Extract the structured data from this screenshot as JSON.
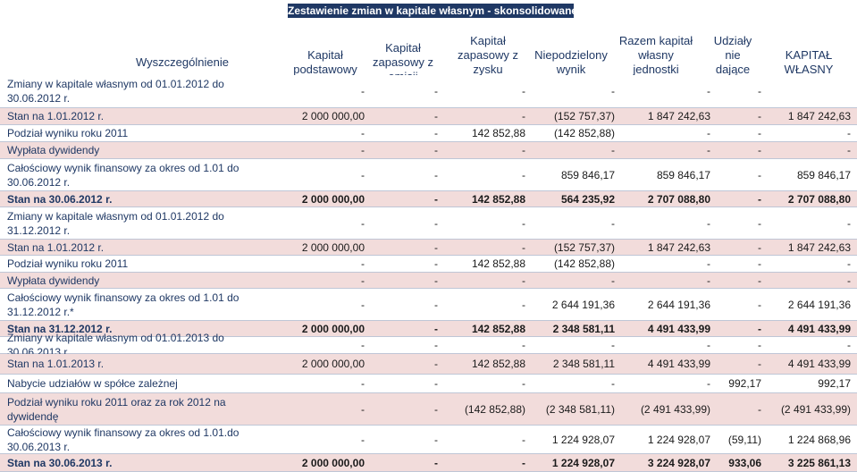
{
  "title": "Zestawienie zmian w kapitale własnym - skonsolidowane",
  "headers": [
    "Wyszczególnienie",
    "Kapitał\npodstawowy",
    "Kapitał\nzapasowy z\nemisji",
    "Kapitał\nzapasowy z\nzysku\nzatrzymanego",
    "Niepodzielony\nwynik",
    "Razem kapitał\nwłasny\njednostki\ndominującej",
    "Udziały\nnie\ndające\nkontroli",
    "KAPITAŁ\nWŁASNY"
  ],
  "rows": [
    {
      "label": "Zmiany w kapitale własnym od 01.01.2012  do\n30.06.2012 r.",
      "values": [
        "-",
        "-",
        "-",
        "-",
        "-",
        "-",
        ""
      ],
      "style": "plain"
    },
    {
      "label": "Stan na 1.01.2012 r.",
      "values": [
        "2 000 000,00",
        "-",
        "-",
        "(152 757,37)",
        "1 847 242,63",
        "-",
        "1 847 242,63"
      ],
      "style": "shade"
    },
    {
      "label": "Podział wyniku roku 2011",
      "values": [
        "-",
        "-",
        "142 852,88",
        "(142 852,88)",
        "-",
        "-",
        "-"
      ],
      "style": "plain"
    },
    {
      "label": "Wypłata dywidendy",
      "values": [
        "-",
        "-",
        "-",
        "-",
        "-",
        "-",
        "-"
      ],
      "style": "shade"
    },
    {
      "label": "Całościowy wynik finansowy za okres od 1.01 do\n30.06.2012 r.",
      "values": [
        "-",
        "-",
        "-",
        "859 846,17",
        "859 846,17",
        "-",
        "859 846,17"
      ],
      "style": "plain"
    },
    {
      "label": "Stan na 30.06.2012 r.",
      "values": [
        "2 000 000,00",
        "-",
        "142 852,88",
        "564 235,92",
        "2 707 088,80",
        "-",
        "2 707 088,80"
      ],
      "style": "hl"
    },
    {
      "label": "Zmiany w kapitale własnym od 01.01.2012 do\n31.12.2012 r.",
      "values": [
        "-",
        "-",
        "-",
        "-",
        "-",
        "-",
        "-"
      ],
      "style": "plain"
    },
    {
      "label": "Stan na 1.01.2012 r.",
      "values": [
        "2 000 000,00",
        "-",
        "-",
        "(152 757,37)",
        "1 847 242,63",
        "-",
        "1 847 242,63"
      ],
      "style": "shade"
    },
    {
      "label": "Podział wyniku roku 2011",
      "values": [
        "-",
        "-",
        "142 852,88",
        "(142 852,88)",
        "-",
        "-",
        "-"
      ],
      "style": "plain"
    },
    {
      "label": "Wypłata dywidendy",
      "values": [
        "-",
        "-",
        "-",
        "-",
        "-",
        "-",
        "-"
      ],
      "style": "shade"
    },
    {
      "label": "Całościowy wynik finansowy za okres od 1.01 do\n31.12.2012 r.*",
      "values": [
        "-",
        "-",
        "-",
        "2 644 191,36",
        "2 644 191,36",
        "-",
        "2 644 191,36"
      ],
      "style": "plain"
    },
    {
      "label": "Stan na 31.12.2012 r.",
      "values": [
        "2 000 000,00",
        "-",
        "142 852,88",
        "2 348 581,11",
        "4 491 433,99",
        "-",
        "4 491 433,99"
      ],
      "style": "hl"
    },
    {
      "label": "Zmiany w kapitale własnym od 01.01.2013 do\n30.06.2013 r.",
      "values": [
        "-",
        "-",
        "-",
        "-",
        "-",
        "-",
        "-"
      ],
      "style": "plain"
    },
    {
      "label": "Stan na 1.01.2013 r.",
      "values": [
        "2 000 000,00",
        "-",
        "142 852,88",
        "2 348 581,11",
        "4 491 433,99",
        "-",
        "4 491 433,99"
      ],
      "style": "shade"
    },
    {
      "label": "Nabycie udziałów w spółce zależnej",
      "values": [
        "-",
        "-",
        "-",
        "-",
        "-",
        "992,17",
        "992,17"
      ],
      "style": "plain"
    },
    {
      "label": "Podział wyniku roku 2011 oraz za rok 2012 na\ndywidendę",
      "values": [
        "-",
        "-",
        "(142 852,88)",
        "(2 348 581,11)",
        "(2 491 433,99)",
        "-",
        "(2 491 433,99)"
      ],
      "style": "shade"
    },
    {
      "label": "Całościowy wynik finansowy za okres od 1.01.do\n30.06.2013 r.",
      "values": [
        "-",
        "-",
        "-",
        "1 224 928,07",
        "1 224 928,07",
        "(59,11)",
        "1 224 868,96"
      ],
      "style": "plain"
    },
    {
      "label": "Stan na 30.06.2013 r.",
      "values": [
        "2 000 000,00",
        "-",
        "-",
        "1 224 928,07",
        "3 224 928,07",
        "933,06",
        "3 225 861,13"
      ],
      "style": "hl"
    }
  ]
}
